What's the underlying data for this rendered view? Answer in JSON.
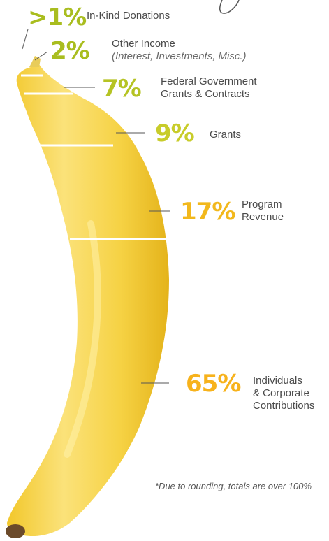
{
  "chart_data": {
    "type": "pie",
    "categories": [
      "In-Kind Donations",
      "Other Income",
      "Federal Government Grants & Contracts",
      "Grants",
      "Program Revenue",
      "Individuals & Corporate Contributions"
    ],
    "values": [
      1,
      2,
      7,
      9,
      17,
      65
    ],
    "value_labels": [
      ">1%",
      "2%",
      "7%",
      "9%",
      "17%",
      "65%"
    ],
    "labels": [
      {
        "line1": "In-Kind Donations",
        "line2": "",
        "line3": ""
      },
      {
        "line1": "Other Income",
        "line2": "(Interest, Investments, Misc.)",
        "line3": ""
      },
      {
        "line1": "Federal Government",
        "line2": "Grants & Contracts",
        "line3": ""
      },
      {
        "line1": "Grants",
        "line2": "",
        "line3": ""
      },
      {
        "line1": "Program",
        "line2": "Revenue",
        "line3": ""
      },
      {
        "line1": "Individuals",
        "line2": "& Corporate",
        "line3": "Contributions"
      }
    ],
    "colors": {
      "green_dark": "#a9bd1f",
      "green": "#c1cc2a",
      "yellow_green": "#d6d42e",
      "orange": "#f7b21b",
      "banana_light": "#fbe98a",
      "banana_mid": "#f6d53c",
      "banana_dark": "#e3b316",
      "tip": "#6b4a2a"
    },
    "footnote": "*Due to rounding, totals are over 100%"
  }
}
